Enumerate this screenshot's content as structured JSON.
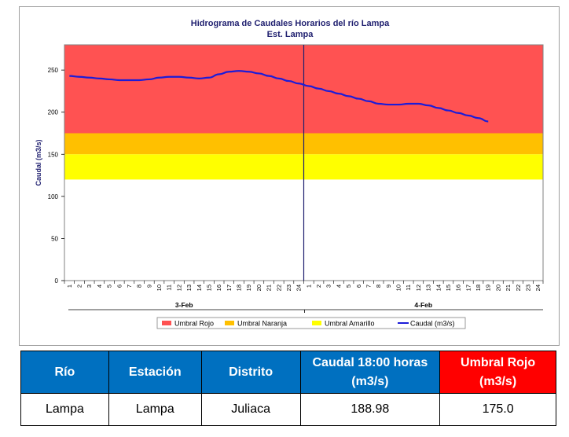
{
  "chart_data": {
    "type": "line",
    "title": "Hidrograma de Caudales Horarios del río Lampa",
    "subtitle": "Est. Lampa",
    "ylabel": "Caudal  (m3/s)",
    "ylim": [
      0,
      280
    ],
    "yticks": [
      0,
      50,
      100,
      150,
      200,
      250
    ],
    "hour_ticks": [
      "1",
      "2",
      "3",
      "4",
      "5",
      "6",
      "7",
      "8",
      "9",
      "10",
      "11",
      "12",
      "13",
      "14",
      "15",
      "16",
      "17",
      "18",
      "19",
      "20",
      "21",
      "22",
      "23",
      "24"
    ],
    "days": [
      "3-Feb",
      "4-Feb"
    ],
    "bands": [
      {
        "name": "Umbral Rojo",
        "from": 175,
        "to": 280,
        "color": "#ff5252"
      },
      {
        "name": "Umbral Naranja",
        "from": 150,
        "to": 175,
        "color": "#ffc000"
      },
      {
        "name": "Umbral Amarillo",
        "from": 120,
        "to": 150,
        "color": "#ffff00"
      }
    ],
    "series": [
      {
        "name": "Caudal (m3/s)",
        "color": "#1c1cd8",
        "x": [
          1,
          2,
          3,
          4,
          5,
          6,
          7,
          8,
          9,
          10,
          11,
          12,
          13,
          14,
          15,
          16,
          17,
          18,
          19,
          20,
          21,
          22,
          23,
          24,
          25,
          26,
          27,
          28,
          29,
          30,
          31,
          32,
          33,
          34,
          35,
          36,
          37,
          38,
          39,
          40,
          41,
          42,
          43
        ],
        "values": [
          243,
          242,
          241,
          240,
          239,
          238,
          238,
          238,
          239,
          241,
          242,
          242,
          241,
          240,
          241,
          245,
          248,
          249,
          248,
          246,
          243,
          240,
          237,
          234,
          231,
          228,
          225,
          222,
          219,
          216,
          213,
          210,
          209,
          209,
          210,
          210,
          208,
          205,
          202,
          199,
          196,
          193,
          189
        ]
      }
    ],
    "legend": [
      "Umbral Rojo",
      "Umbral Naranja",
      "Umbral Amarillo",
      "Caudal (m3/s)"
    ],
    "legend_position": "bottom"
  },
  "table": {
    "headers": [
      {
        "label": "Río",
        "color": "#0070c0"
      },
      {
        "label": "Estación",
        "color": "#0070c0"
      },
      {
        "label": "Distrito",
        "color": "#0070c0"
      },
      {
        "label": "Caudal  18:00 horas (m3/s)",
        "color": "#0070c0"
      },
      {
        "label": "Umbral Rojo (m3/s)",
        "color": "#ff0000"
      }
    ],
    "row": [
      "Lampa",
      "Lampa",
      "Juliaca",
      "188.98",
      "175.0"
    ]
  }
}
